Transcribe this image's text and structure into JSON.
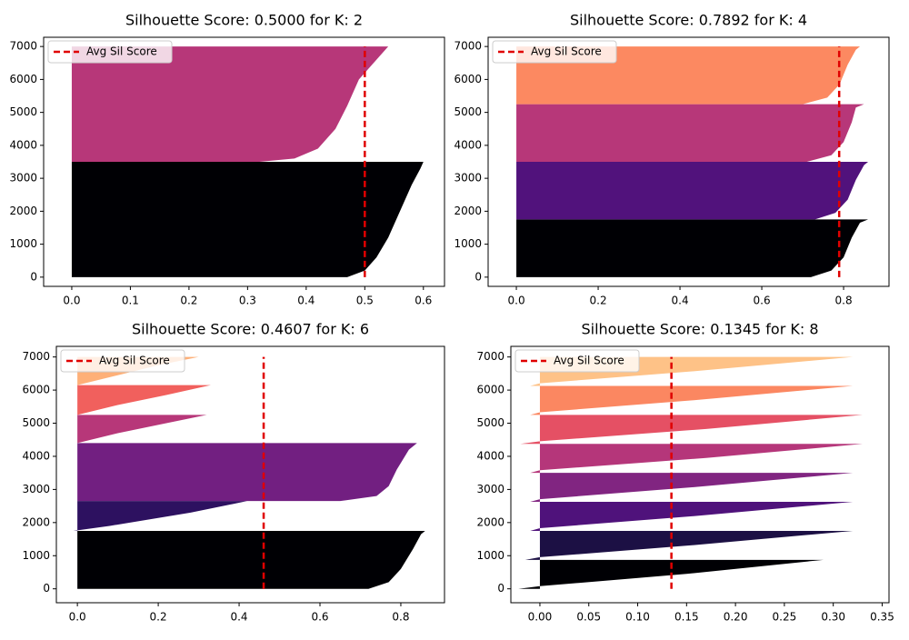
{
  "chart_data": [
    {
      "type": "silhouette",
      "title": "Silhouette Score: 0.5000 for K: 2",
      "avg_score": 0.5,
      "avg_color": "#e00000",
      "legend": "Avg Sil Score",
      "legend_position": "upper left",
      "xlim": [
        -0.048,
        0.636
      ],
      "xticks": [
        {
          "value": 0,
          "label": "0.0"
        },
        0.1,
        0.2,
        0.3,
        0.4,
        0.5,
        0.6
      ],
      "ylim": [
        -280,
        7280
      ],
      "yticks": [
        0,
        1000,
        2000,
        3000,
        4000,
        5000,
        6000,
        7000
      ],
      "series": [
        {
          "color": "#000004",
          "y": [
            0,
            200,
            600,
            1200,
            2000,
            2800,
            3300,
            3500
          ],
          "values": [
            0.47,
            0.5,
            0.52,
            0.54,
            0.56,
            0.58,
            0.595,
            0.6
          ]
        },
        {
          "color": "#b73779",
          "y": [
            3500,
            3600,
            3900,
            4500,
            5200,
            6000,
            6600,
            7000
          ],
          "values": [
            0.32,
            0.38,
            0.42,
            0.45,
            0.47,
            0.49,
            0.52,
            0.54
          ]
        }
      ]
    },
    {
      "type": "silhouette",
      "title": "Silhouette Score: 0.7892 for K: 4",
      "avg_score": 0.7892,
      "avg_color": "#e00000",
      "legend": "Avg Sil Score",
      "legend_position": "upper left",
      "xlim": [
        -0.069,
        0.911
      ],
      "xticks": [
        {
          "value": 0,
          "label": "0.0"
        },
        0.2,
        0.4,
        0.6,
        0.8
      ],
      "ylim": [
        -280,
        7280
      ],
      "yticks": [
        0,
        1000,
        2000,
        3000,
        4000,
        5000,
        6000,
        7000
      ],
      "series": [
        {
          "color": "#000004",
          "y": [
            0,
            200,
            600,
            1200,
            1650,
            1750
          ],
          "values": [
            0.72,
            0.77,
            0.8,
            0.82,
            0.84,
            0.86
          ]
        },
        {
          "color": "#51127c",
          "y": [
            1750,
            1950,
            2350,
            2950,
            3400,
            3500
          ],
          "values": [
            0.73,
            0.78,
            0.81,
            0.83,
            0.85,
            0.86
          ]
        },
        {
          "color": "#b73779",
          "y": [
            3500,
            3700,
            4100,
            4700,
            5150,
            5250
          ],
          "values": [
            0.71,
            0.77,
            0.8,
            0.82,
            0.83,
            0.85
          ]
        },
        {
          "color": "#fc8961",
          "y": [
            5250,
            5450,
            5850,
            6450,
            6900,
            7000
          ],
          "values": [
            0.7,
            0.76,
            0.79,
            0.81,
            0.83,
            0.84
          ]
        }
      ]
    },
    {
      "type": "silhouette",
      "title": "Silhouette Score: 0.4607 for K: 6",
      "avg_score": 0.4607,
      "avg_color": "#e00000",
      "legend": "Avg Sil Score",
      "legend_position": "upper left",
      "xlim": [
        -0.052,
        0.908
      ],
      "xticks": [
        {
          "value": 0,
          "label": "0.0"
        },
        0.2,
        0.4,
        0.6,
        0.8
      ],
      "ylim": [
        -420,
        7320
      ],
      "yticks": [
        0,
        1000,
        2000,
        3000,
        4000,
        5000,
        6000,
        7000
      ],
      "series": [
        {
          "color": "#000004",
          "y": [
            0,
            200,
            600,
            1200,
            1650,
            1750
          ],
          "values": [
            0.72,
            0.77,
            0.8,
            0.83,
            0.85,
            0.86
          ]
        },
        {
          "color": "#2d1160",
          "y": [
            1750,
            1900,
            2300,
            2650
          ],
          "values": [
            -0.01,
            0.08,
            0.28,
            0.42
          ]
        },
        {
          "color": "#721f81",
          "y": [
            2650,
            2800,
            3100,
            3600,
            4200,
            4400
          ],
          "values": [
            0.65,
            0.74,
            0.77,
            0.79,
            0.82,
            0.84
          ]
        },
        {
          "color": "#b73779",
          "y": [
            4400,
            4700,
            5000,
            5250
          ],
          "values": [
            0,
            0.1,
            0.22,
            0.32
          ]
        },
        {
          "color": "#f1605d",
          "y": [
            5250,
            5550,
            5850,
            6150
          ],
          "values": [
            0,
            0.1,
            0.22,
            0.33
          ]
        },
        {
          "color": "#feb078",
          "y": [
            6150,
            6450,
            6750,
            7000
          ],
          "values": [
            0,
            0.1,
            0.2,
            0.3
          ]
        }
      ]
    },
    {
      "type": "silhouette",
      "title": "Silhouette Score: 0.1345 for K: 8",
      "avg_score": 0.1345,
      "avg_color": "#e00000",
      "legend": "Avg Sil Score",
      "legend_position": "upper left",
      "xlim": [
        -0.0297,
        0.357
      ],
      "xticks": [
        {
          "value": 0,
          "label": "0.00"
        },
        0.05,
        {
          "value": 0.1,
          "label": "0.10"
        },
        0.15,
        {
          "value": 0.2,
          "label": "0.20"
        },
        0.25,
        {
          "value": 0.3,
          "label": "0.30"
        },
        0.35
      ],
      "ylim": [
        -420,
        7320
      ],
      "yticks": [
        0,
        1000,
        2000,
        3000,
        4000,
        5000,
        6000,
        7000
      ],
      "series": [
        {
          "color": "#000004",
          "y": [
            0,
            80,
            450,
            875
          ],
          "values": [
            -0.022,
            0,
            0.15,
            0.29
          ]
        },
        {
          "color": "#1c1044",
          "y": [
            875,
            955,
            1325,
            1750
          ],
          "values": [
            -0.015,
            0,
            0.16,
            0.32
          ]
        },
        {
          "color": "#4f127b",
          "y": [
            1750,
            1830,
            2200,
            2625
          ],
          "values": [
            -0.01,
            0,
            0.16,
            0.32
          ]
        },
        {
          "color": "#812581",
          "y": [
            2625,
            2705,
            3075,
            3500
          ],
          "values": [
            -0.01,
            0,
            0.16,
            0.32
          ]
        },
        {
          "color": "#b5367a",
          "y": [
            3500,
            3580,
            3950,
            4375
          ],
          "values": [
            -0.01,
            0,
            0.17,
            0.33
          ]
        },
        {
          "color": "#e55064",
          "y": [
            4375,
            4455,
            4825,
            5250
          ],
          "values": [
            -0.02,
            0,
            0.17,
            0.33
          ]
        },
        {
          "color": "#fb8761",
          "y": [
            5250,
            5330,
            5700,
            6125
          ],
          "values": [
            -0.01,
            0,
            0.16,
            0.32
          ]
        },
        {
          "color": "#fec287",
          "y": [
            6125,
            6205,
            6575,
            7000
          ],
          "values": [
            -0.01,
            0,
            0.16,
            0.32
          ]
        }
      ]
    }
  ]
}
